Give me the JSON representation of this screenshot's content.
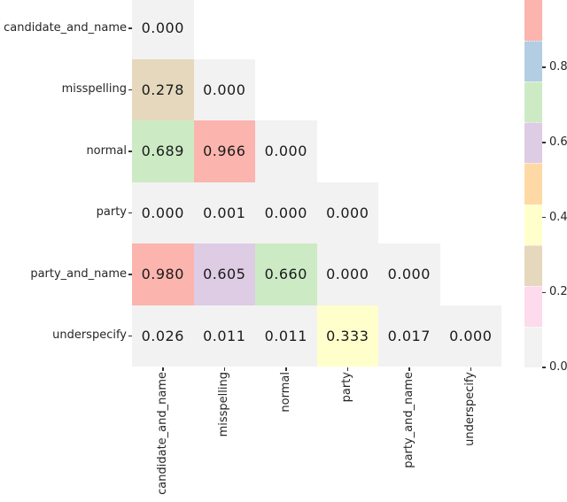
{
  "figure": {
    "background": "#ffffff",
    "label_color": "#262626",
    "annotation_color": "#1a1a1a"
  },
  "chart_data": {
    "type": "heatmap",
    "shape": "lower-triangle",
    "title": "",
    "xlabel": "",
    "ylabel": "",
    "categories": [
      "candidate_and_name",
      "misspelling",
      "normal",
      "party",
      "party_and_name",
      "underspecify"
    ],
    "x_categories": [
      "candidate_and_name",
      "misspelling",
      "normal",
      "party",
      "party_and_name",
      "underspecify"
    ],
    "cells": [
      [
        "0.000"
      ],
      [
        "0.278",
        "0.000"
      ],
      [
        "0.689",
        "0.966",
        "0.000"
      ],
      [
        "0.000",
        "0.001",
        "0.000",
        "0.000"
      ],
      [
        "0.980",
        "0.605",
        "0.660",
        "0.000",
        "0.000"
      ],
      [
        "0.026",
        "0.011",
        "0.011",
        "0.333",
        "0.017",
        "0.000"
      ]
    ],
    "annotations": true,
    "grid": false,
    "colormap": {
      "name": "Pastel1_r",
      "n_bins": 9,
      "vmin": 0.0,
      "vmax": 0.98,
      "palette_low_to_high": [
        "#f2f2f2",
        "#fddaec",
        "#e5d8bd",
        "#ffffcc",
        "#fed9a6",
        "#decbe4",
        "#ccebc5",
        "#b3cde3",
        "#fbb4ae"
      ]
    },
    "colorbar": {
      "position": "right",
      "tick_labels": [
        "0.8",
        "0.6",
        "0.4",
        "0.2",
        "0.0"
      ]
    }
  }
}
